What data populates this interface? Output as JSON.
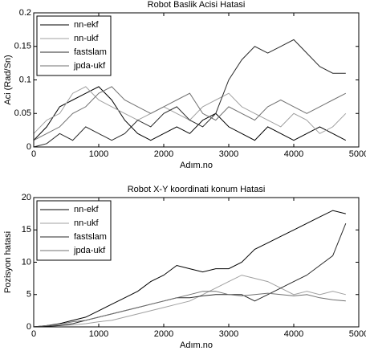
{
  "chart_data": [
    {
      "type": "line",
      "title": "Robot Baslik Acisi Hatasi",
      "xlabel": "Adım.no",
      "ylabel": "Aci (Rad/Sn)",
      "x": [
        0,
        200,
        400,
        600,
        800,
        1000,
        1200,
        1400,
        1600,
        1800,
        2000,
        2200,
        2400,
        2600,
        2800,
        3000,
        3200,
        3400,
        3600,
        3800,
        4000,
        4200,
        4400,
        4600,
        4800
      ],
      "xlim": [
        0,
        5000
      ],
      "xticks": [
        0,
        1000,
        2000,
        3000,
        4000,
        5000
      ],
      "ylim": [
        0,
        0.2
      ],
      "yticks": [
        0,
        0.05,
        0.1,
        0.15,
        0.2
      ],
      "grid": false,
      "legend": "upper left",
      "series": [
        {
          "name": "nn-ekf",
          "color": "#000000",
          "values": [
            0.01,
            0.03,
            0.06,
            0.07,
            0.08,
            0.09,
            0.07,
            0.04,
            0.02,
            0.01,
            0.02,
            0.03,
            0.02,
            0.04,
            0.05,
            0.03,
            0.02,
            0.01,
            0.03,
            0.02,
            0.01,
            0.02,
            0.03,
            0.02,
            0.01
          ]
        },
        {
          "name": "nn-ukf",
          "color": "#a0a0a0",
          "values": [
            0.02,
            0.04,
            0.05,
            0.08,
            0.09,
            0.07,
            0.06,
            0.05,
            0.04,
            0.05,
            0.06,
            0.05,
            0.04,
            0.06,
            0.07,
            0.08,
            0.06,
            0.05,
            0.04,
            0.03,
            0.05,
            0.04,
            0.02,
            0.03,
            0.05
          ]
        },
        {
          "name": "fastslam",
          "color": "#2a2a2a",
          "values": [
            0,
            0.005,
            0.02,
            0.01,
            0.03,
            0.02,
            0.01,
            0.02,
            0.04,
            0.03,
            0.05,
            0.06,
            0.04,
            0.03,
            0.05,
            0.1,
            0.13,
            0.15,
            0.14,
            0.15,
            0.16,
            0.14,
            0.12,
            0.11,
            0.11
          ]
        },
        {
          "name": "jpda-ukf",
          "color": "#707070",
          "values": [
            0.01,
            0.02,
            0.03,
            0.05,
            0.06,
            0.08,
            0.09,
            0.07,
            0.06,
            0.05,
            0.06,
            0.07,
            0.08,
            0.05,
            0.04,
            0.06,
            0.05,
            0.04,
            0.06,
            0.07,
            0.06,
            0.05,
            0.06,
            0.07,
            0.08
          ]
        }
      ]
    },
    {
      "type": "line",
      "title": "Robot X-Y koordinati konum Hatasi",
      "xlabel": "Adım.no",
      "ylabel": "Pozisyon hatasi",
      "x": [
        0,
        200,
        400,
        600,
        800,
        1000,
        1200,
        1400,
        1600,
        1800,
        2000,
        2200,
        2400,
        2600,
        2800,
        3000,
        3200,
        3400,
        3600,
        3800,
        4000,
        4200,
        4400,
        4600,
        4800
      ],
      "xlim": [
        0,
        5000
      ],
      "xticks": [
        0,
        1000,
        2000,
        3000,
        4000,
        5000
      ],
      "ylim": [
        0,
        20
      ],
      "yticks": [
        0,
        5,
        10,
        15,
        20
      ],
      "grid": false,
      "legend": "upper left",
      "series": [
        {
          "name": "nn-ekf",
          "color": "#000000",
          "values": [
            0,
            0.2,
            0.5,
            1,
            1.5,
            2.5,
            3.5,
            4.5,
            5.5,
            7,
            8,
            9.5,
            9,
            8.5,
            9,
            9,
            10,
            12,
            13,
            14,
            15,
            16,
            17,
            18,
            17.5
          ]
        },
        {
          "name": "nn-ukf",
          "color": "#a0a0a0",
          "values": [
            0,
            0.1,
            0.2,
            0.3,
            0.5,
            0.8,
            1,
            1.5,
            2,
            2.5,
            3,
            3.5,
            4,
            5,
            6,
            7,
            8,
            7.5,
            7,
            6,
            5,
            5.5,
            5,
            5.5,
            5
          ]
        },
        {
          "name": "fastslam",
          "color": "#2a2a2a",
          "values": [
            0,
            0.1,
            0.2,
            0.5,
            1,
            1.5,
            2,
            2.5,
            3,
            3.5,
            4,
            4.5,
            4.5,
            4.8,
            5,
            5,
            5,
            4,
            5,
            6,
            7,
            8,
            9.5,
            11,
            16
          ]
        },
        {
          "name": "jpda-ukf",
          "color": "#707070",
          "values": [
            0,
            0.2,
            0.4,
            0.8,
            1,
            1.5,
            2,
            2.5,
            3,
            3.5,
            4,
            4.5,
            5,
            5.5,
            5.5,
            5,
            4.8,
            5,
            5.2,
            5,
            4.8,
            5,
            4.5,
            4.2,
            4
          ]
        }
      ]
    }
  ]
}
